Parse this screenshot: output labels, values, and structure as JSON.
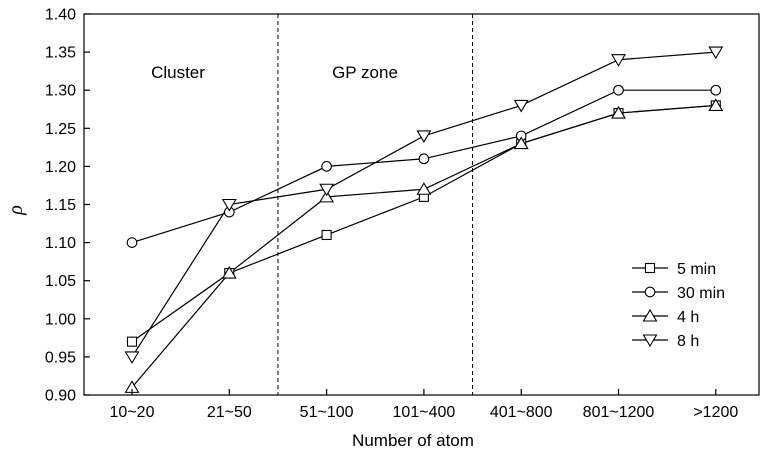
{
  "chart_data": {
    "type": "line",
    "xlabel": "Number of atom",
    "ylabel": "ρ",
    "ylim": [
      0.9,
      1.4
    ],
    "yticks": [
      "0.90",
      "0.95",
      "1.00",
      "1.05",
      "1.10",
      "1.15",
      "1.20",
      "1.25",
      "1.30",
      "1.35",
      "1.40"
    ],
    "categories": [
      "10~20",
      "21~50",
      "51~100",
      "101~400",
      "401~800",
      "801~1200",
      ">1200"
    ],
    "regions": [
      {
        "label": "Cluster"
      },
      {
        "label": "GP zone"
      }
    ],
    "dividers_after_category": [
      1.5,
      3.5
    ],
    "grid": false,
    "legend_position": "right",
    "series": [
      {
        "name": "5 min",
        "marker": "square",
        "values": [
          0.97,
          1.06,
          1.11,
          1.16,
          1.23,
          1.27,
          1.28
        ]
      },
      {
        "name": "30 min",
        "marker": "circle",
        "values": [
          1.1,
          1.14,
          1.2,
          1.21,
          1.24,
          1.3,
          1.3
        ]
      },
      {
        "name": "4 h",
        "marker": "triangle-up",
        "values": [
          0.91,
          1.06,
          1.16,
          1.17,
          1.23,
          1.27,
          1.28
        ]
      },
      {
        "name": "8 h",
        "marker": "triangle-down",
        "values": [
          0.95,
          1.15,
          1.17,
          1.24,
          1.28,
          1.34,
          1.35
        ]
      }
    ]
  }
}
